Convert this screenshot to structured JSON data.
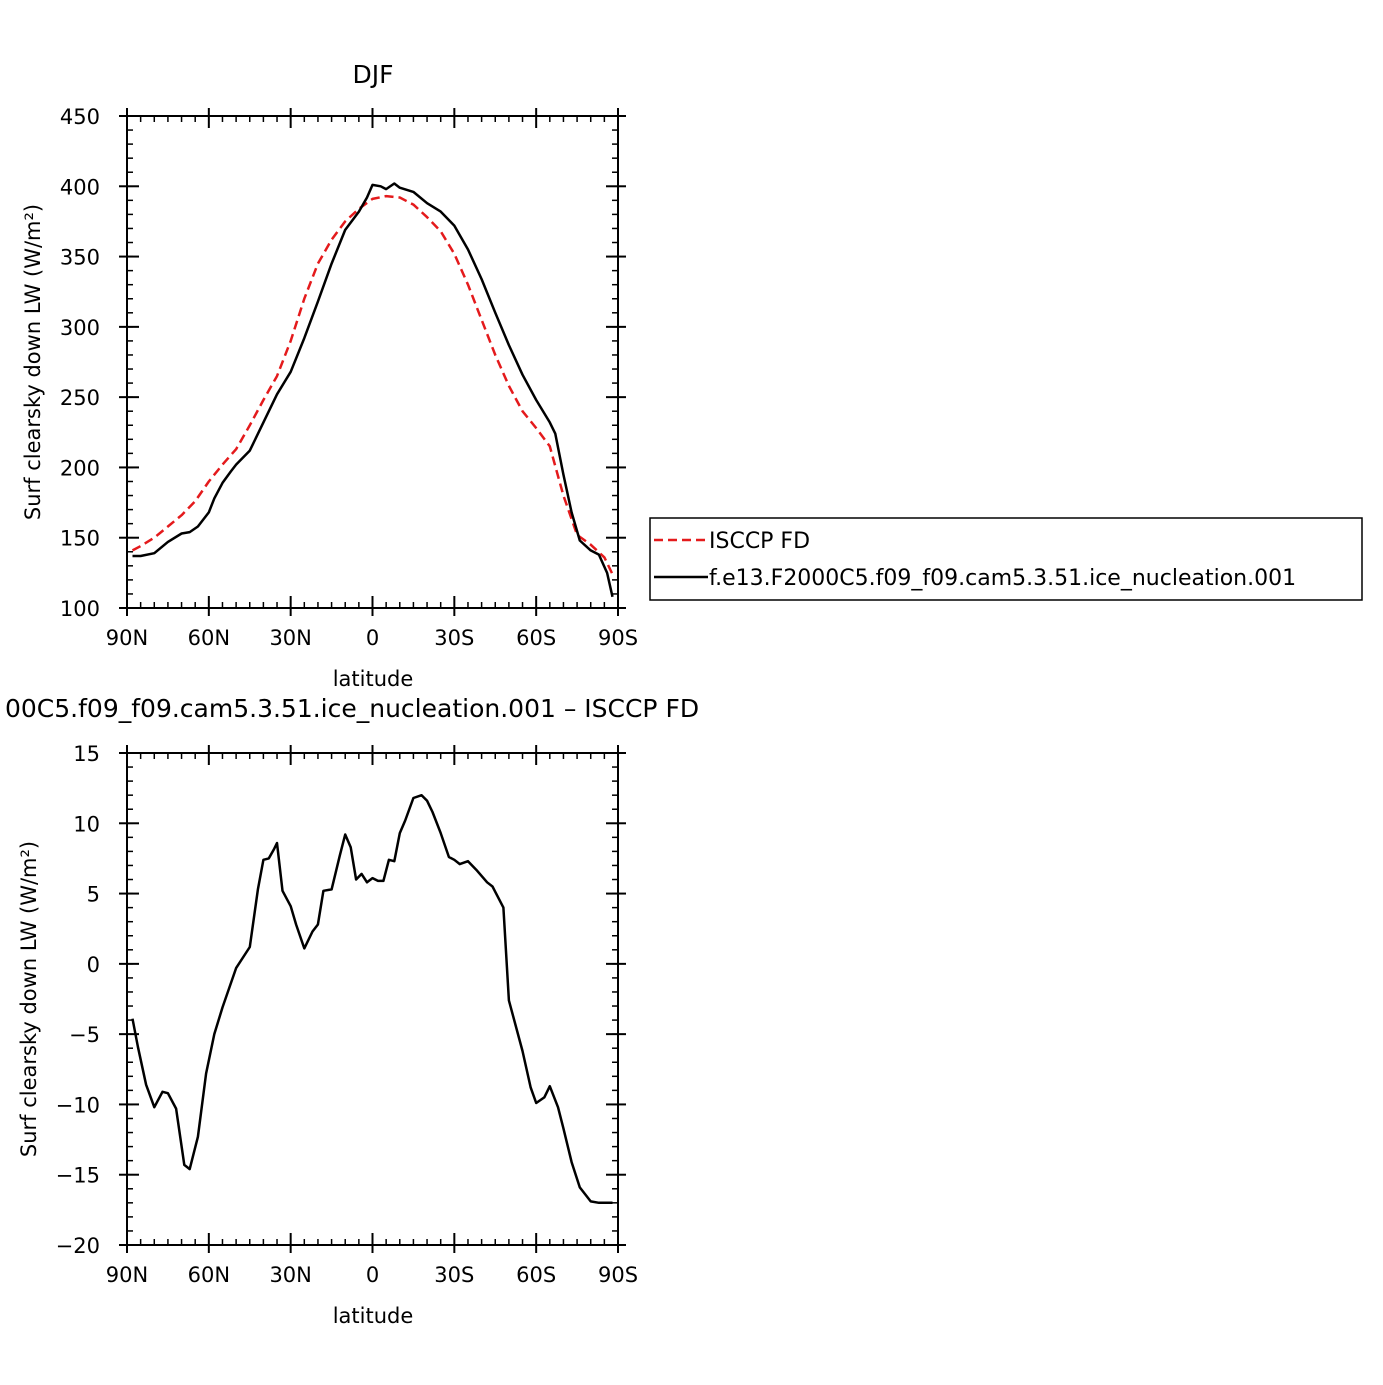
{
  "chart_data": [
    {
      "type": "line",
      "title": "DJF",
      "xlabel": "latitude",
      "ylabel": "Surf clearsky down LW (W/m²)",
      "xlim": [
        -90,
        90
      ],
      "ylim": [
        100,
        450
      ],
      "xticks": [
        {
          "value": -90,
          "label": "90N"
        },
        {
          "value": -60,
          "label": "60N"
        },
        {
          "value": -30,
          "label": "30N"
        },
        {
          "value": 0,
          "label": "0"
        },
        {
          "value": 30,
          "label": "30S"
        },
        {
          "value": 60,
          "label": "60S"
        },
        {
          "value": 90,
          "label": "90S"
        }
      ],
      "yticks": [
        100,
        150,
        200,
        250,
        300,
        350,
        400,
        450
      ],
      "legend": "right",
      "series": [
        {
          "name": "ISCCP FD",
          "color": "#e41a1c",
          "dash": "dashed",
          "x": [
            -88,
            -85,
            -80,
            -75,
            -70,
            -65,
            -60,
            -55,
            -50,
            -45,
            -40,
            -35,
            -30,
            -25,
            -20,
            -15,
            -10,
            -5,
            0,
            5,
            10,
            15,
            20,
            25,
            30,
            35,
            40,
            45,
            50,
            55,
            60,
            65,
            70,
            75,
            80,
            85,
            88
          ],
          "y": [
            141,
            144,
            150,
            158,
            166,
            176,
            190,
            202,
            213,
            230,
            248,
            265,
            290,
            320,
            345,
            362,
            375,
            384,
            391,
            393,
            392,
            387,
            378,
            368,
            352,
            330,
            305,
            280,
            258,
            240,
            228,
            215,
            180,
            152,
            145,
            136,
            124
          ]
        },
        {
          "name": "f.e13.F2000C5.f09_f09.cam5.3.51.ice_nucleation.001",
          "color": "#000000",
          "dash": "solid",
          "x": [
            -88,
            -85,
            -80,
            -75,
            -70,
            -67,
            -64,
            -60,
            -58,
            -55,
            -52,
            -50,
            -45,
            -40,
            -35,
            -30,
            -25,
            -20,
            -15,
            -10,
            -5,
            -2,
            0,
            3,
            5,
            8,
            10,
            15,
            20,
            25,
            30,
            35,
            40,
            45,
            50,
            55,
            60,
            65,
            67,
            70,
            73,
            76,
            80,
            83,
            86,
            88
          ],
          "y": [
            137,
            137,
            139,
            147,
            153,
            154,
            158,
            168,
            178,
            189,
            197,
            202,
            212,
            232,
            252,
            268,
            292,
            318,
            345,
            369,
            382,
            392,
            401,
            400,
            398,
            402,
            399,
            396,
            388,
            382,
            372,
            355,
            334,
            310,
            287,
            266,
            248,
            232,
            224,
            195,
            168,
            148,
            141,
            138,
            125,
            108
          ]
        }
      ]
    },
    {
      "type": "line",
      "title": "00C5.f09_f09.cam5.3.51.ice_nucleation.001 – ISCCP FD",
      "xlabel": "latitude",
      "ylabel": "Surf clearsky down LW (W/m²)",
      "xlim": [
        -90,
        90
      ],
      "ylim": [
        -20,
        15
      ],
      "xticks": [
        {
          "value": -90,
          "label": "90N"
        },
        {
          "value": -60,
          "label": "60N"
        },
        {
          "value": -30,
          "label": "30N"
        },
        {
          "value": 0,
          "label": "0"
        },
        {
          "value": 30,
          "label": "30S"
        },
        {
          "value": 60,
          "label": "60S"
        },
        {
          "value": 90,
          "label": "90S"
        }
      ],
      "yticks": [
        {
          "value": -20,
          "label": "−20"
        },
        {
          "value": -15,
          "label": "−15"
        },
        {
          "value": -10,
          "label": "−10"
        },
        {
          "value": -5,
          "label": "−5"
        },
        {
          "value": 0,
          "label": "0"
        },
        {
          "value": 5,
          "label": "5"
        },
        {
          "value": 10,
          "label": "10"
        },
        {
          "value": 15,
          "label": "15"
        }
      ],
      "series": [
        {
          "color": "#000000",
          "dash": "solid",
          "x": [
            -88,
            -86,
            -83,
            -80,
            -77,
            -75,
            -72,
            -69,
            -67,
            -64,
            -61,
            -58,
            -55,
            -50,
            -45,
            -42,
            -40,
            -38,
            -36,
            -35,
            -33,
            -30,
            -28,
            -25,
            -22,
            -20,
            -18,
            -15,
            -12,
            -10,
            -8,
            -6,
            -4,
            -2,
            0,
            2,
            4,
            6,
            8,
            10,
            12,
            15,
            18,
            20,
            22,
            25,
            28,
            30,
            32,
            35,
            38,
            42,
            44,
            48,
            50,
            55,
            58,
            60,
            63,
            65,
            68,
            70,
            73,
            76,
            80,
            83,
            85,
            86,
            88
          ],
          "y": [
            -3.9,
            -5.9,
            -8.6,
            -10.2,
            -9.1,
            -9.2,
            -10.3,
            -14.3,
            -14.6,
            -12.3,
            -7.8,
            -5,
            -3.1,
            -0.3,
            1.2,
            5.3,
            7.4,
            7.5,
            8.2,
            8.6,
            5.2,
            4.1,
            2.8,
            1.1,
            2.3,
            2.8,
            5.2,
            5.3,
            7.7,
            9.2,
            8.3,
            6.0,
            6.4,
            5.8,
            6.1,
            5.9,
            5.9,
            7.4,
            7.3,
            9.3,
            10.2,
            11.8,
            12.0,
            11.6,
            10.8,
            9.3,
            7.6,
            7.4,
            7.1,
            7.3,
            6.7,
            5.8,
            5.5,
            4.0,
            -2.6,
            -6.2,
            -8.8,
            -9.9,
            -9.5,
            -8.7,
            -10.2,
            -11.7,
            -14.1,
            -15.9,
            -16.9,
            -17,
            -17,
            -17,
            -17
          ]
        }
      ]
    }
  ]
}
